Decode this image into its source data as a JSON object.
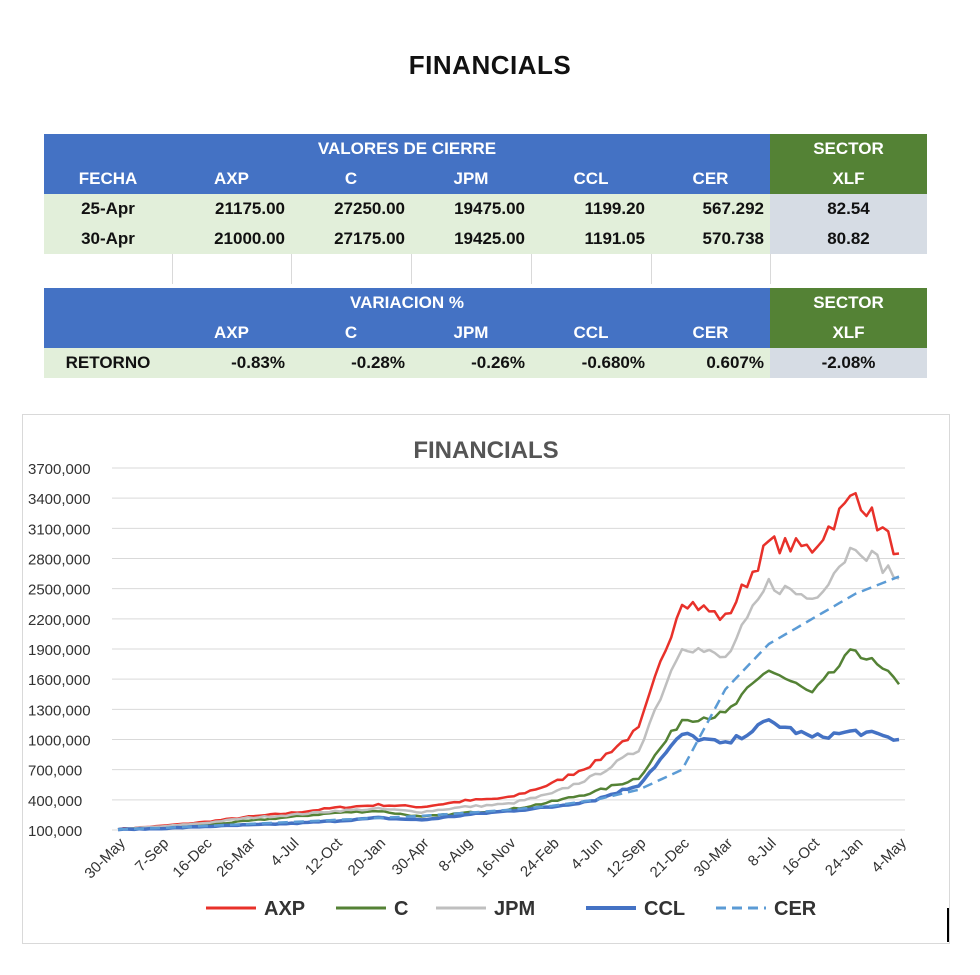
{
  "page_title": "FINANCIALS",
  "table1": {
    "group_header": "VALORES DE CIERRE",
    "sector_header": "SECTOR",
    "columns": [
      "FECHA",
      "AXP",
      "C",
      "JPM",
      "CCL",
      "CER"
    ],
    "sector_column": "XLF",
    "rows": [
      {
        "fecha": "25-Apr",
        "axp": "21175.00",
        "c": "27250.00",
        "jpm": "19475.00",
        "ccl": "1199.20",
        "cer": "567.292",
        "xlf": "82.54"
      },
      {
        "fecha": "30-Apr",
        "axp": "21000.00",
        "c": "27175.00",
        "jpm": "19425.00",
        "ccl": "1191.05",
        "cer": "570.738",
        "xlf": "80.82"
      }
    ]
  },
  "table2": {
    "group_header": "VARIACION %",
    "sector_header": "SECTOR",
    "columns": [
      "AXP",
      "C",
      "JPM",
      "CCL",
      "CER"
    ],
    "sector_column": "XLF",
    "row": {
      "label": "RETORNO",
      "axp": "-0.83%",
      "c": "-0.28%",
      "jpm": "-0.26%",
      "ccl": "-0.680%",
      "cer": "0.607%",
      "xlf": "-2.08%"
    }
  },
  "chart_data": {
    "type": "line",
    "title": "FINANCIALS",
    "xlabel": "",
    "ylabel": "",
    "ylim": [
      100000,
      3700000
    ],
    "y_ticks": [
      100000,
      400000,
      700000,
      1000000,
      1300000,
      1600000,
      1900000,
      2200000,
      2500000,
      2800000,
      3100000,
      3400000,
      3700000
    ],
    "y_tick_labels": [
      "100,000",
      "400,000",
      "700,000",
      "1000,000",
      "1300,000",
      "1600,000",
      "1900,000",
      "2200,000",
      "2500,000",
      "2800,000",
      "3100,000",
      "3400,000",
      "3700,000"
    ],
    "categories": [
      "30-May",
      "7-Sep",
      "16-Dec",
      "26-Mar",
      "4-Jul",
      "12-Oct",
      "20-Jan",
      "30-Apr",
      "8-Aug",
      "16-Nov",
      "24-Feb",
      "4-Jun",
      "12-Sep",
      "21-Dec",
      "30-Mar",
      "8-Jul",
      "16-Oct",
      "24-Jan",
      "4-May"
    ],
    "legend_position": "bottom",
    "grid": true,
    "series": [
      {
        "name": "AXP",
        "color": "#E8312A",
        "dash": "solid",
        "values": [
          110000,
          140000,
          180000,
          230000,
          270000,
          320000,
          350000,
          330000,
          390000,
          420000,
          560000,
          770000,
          1100000,
          2400000,
          2200000,
          2950000,
          2900000,
          3450000,
          2850000
        ]
      },
      {
        "name": "C",
        "color": "#548235",
        "dash": "solid",
        "values": [
          105000,
          130000,
          150000,
          190000,
          230000,
          270000,
          290000,
          230000,
          270000,
          300000,
          380000,
          480000,
          620000,
          1200000,
          1250000,
          1700000,
          1450000,
          1900000,
          1550000
        ]
      },
      {
        "name": "JPM",
        "color": "#BFBFBF",
        "dash": "solid",
        "values": [
          108000,
          135000,
          170000,
          220000,
          250000,
          290000,
          310000,
          280000,
          330000,
          360000,
          460000,
          640000,
          900000,
          1950000,
          1800000,
          2550000,
          2400000,
          2950000,
          2600000
        ]
      },
      {
        "name": "CCL",
        "color": "#4472C4",
        "dash": "solid",
        "values": [
          105000,
          115000,
          135000,
          150000,
          165000,
          190000,
          220000,
          200000,
          250000,
          290000,
          330000,
          400000,
          550000,
          1050000,
          950000,
          1180000,
          1020000,
          1080000,
          1000000
        ]
      },
      {
        "name": "CER",
        "color": "#5B9BD5",
        "dash": "dashed",
        "values": [
          105000,
          120000,
          140000,
          160000,
          180000,
          200000,
          220000,
          240000,
          270000,
          300000,
          340000,
          400000,
          500000,
          700000,
          1500000,
          1950000,
          2200000,
          2450000,
          2620000
        ]
      }
    ]
  }
}
